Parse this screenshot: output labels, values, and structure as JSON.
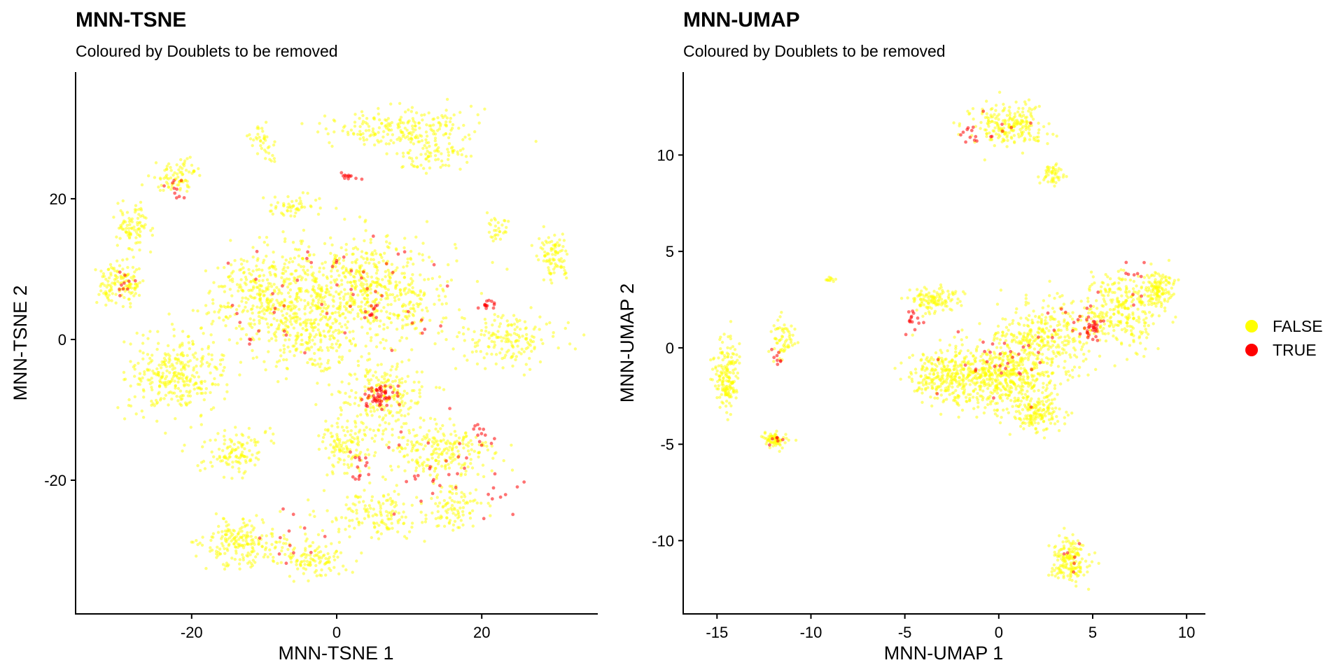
{
  "colors": {
    "FALSE": "#FFFF00",
    "TRUE": "#FF0000"
  },
  "legend": {
    "entries": [
      {
        "label": "FALSE",
        "color": "#FFFF00"
      },
      {
        "label": "TRUE",
        "color": "#FF0000"
      }
    ]
  },
  "chart_data": [
    {
      "type": "scatter",
      "title": "MNN-TSNE",
      "subtitle": "Coloured by Doublets to be removed",
      "xlabel": "MNN-TSNE 1",
      "ylabel": "MNN-TSNE 2",
      "xlim": [
        -36,
        36
      ],
      "ylim": [
        -39,
        38
      ],
      "xticks": [
        -20,
        0,
        20
      ],
      "yticks": [
        -20,
        0,
        20
      ],
      "xtick_labels": [
        "-20",
        "0",
        "20"
      ],
      "ytick_labels": [
        "-20",
        "0",
        "20"
      ],
      "grid": false,
      "legend_position": "right",
      "series": [
        {
          "name": "FALSE",
          "clusters": [
            {
              "x": 4,
              "y": 7,
              "sx": 11,
              "sy": 7,
              "n": 650
            },
            {
              "x": -9,
              "y": 6,
              "sx": 8,
              "sy": 6,
              "n": 400
            },
            {
              "x": -22,
              "y": -5,
              "sx": 6,
              "sy": 5,
              "n": 320
            },
            {
              "x": 24,
              "y": 0,
              "sx": 6,
              "sy": 3,
              "n": 160
            },
            {
              "x": 6,
              "y": -8,
              "sx": 6,
              "sy": 5,
              "n": 220
            },
            {
              "x": 14,
              "y": -16,
              "sx": 7,
              "sy": 4,
              "n": 230
            },
            {
              "x": 5,
              "y": -25,
              "sx": 6,
              "sy": 3,
              "n": 140
            },
            {
              "x": 16,
              "y": -24,
              "sx": 4,
              "sy": 3,
              "n": 100
            },
            {
              "x": -13,
              "y": -29,
              "sx": 5,
              "sy": 3,
              "n": 200
            },
            {
              "x": -3,
              "y": -31,
              "sx": 4,
              "sy": 2.5,
              "n": 110
            },
            {
              "x": -14,
              "y": -16,
              "sx": 4,
              "sy": 3,
              "n": 120
            },
            {
              "x": 1,
              "y": -15,
              "sx": 3,
              "sy": 4,
              "n": 120
            },
            {
              "x": 9,
              "y": 30,
              "sx": 9,
              "sy": 2.5,
              "n": 220
            },
            {
              "x": 13,
              "y": 26,
              "sx": 4,
              "sy": 2,
              "n": 70
            },
            {
              "x": -30,
              "y": 8,
              "sx": 3,
              "sy": 2.5,
              "n": 130
            },
            {
              "x": -28,
              "y": 16,
              "sx": 2,
              "sy": 3,
              "n": 90
            },
            {
              "x": -22,
              "y": 23,
              "sx": 3,
              "sy": 2,
              "n": 80
            },
            {
              "x": 30,
              "y": 12,
              "sx": 2,
              "sy": 3,
              "n": 90
            },
            {
              "x": -10,
              "y": 28,
              "sx": 2,
              "sy": 2,
              "n": 40
            },
            {
              "x": -6,
              "y": 19,
              "sx": 3,
              "sy": 1.5,
              "n": 50
            },
            {
              "x": 22,
              "y": 16,
              "sx": 1.5,
              "sy": 2,
              "n": 30
            },
            {
              "x": -4,
              "y": 0,
              "sx": 6,
              "sy": 4,
              "n": 150
            }
          ]
        },
        {
          "name": "TRUE",
          "clusters": [
            {
              "x": 6,
              "y": -8,
              "sx": 2,
              "sy": 1.5,
              "n": 55
            },
            {
              "x": 21,
              "y": 5,
              "sx": 1,
              "sy": 0.8,
              "n": 14
            },
            {
              "x": 2,
              "y": 23,
              "sx": 1.5,
              "sy": 0.6,
              "n": 12
            },
            {
              "x": -22,
              "y": 21,
              "sx": 1.5,
              "sy": 1.5,
              "n": 10
            },
            {
              "x": 5,
              "y": 4,
              "sx": 1,
              "sy": 1,
              "n": 10
            },
            {
              "x": 3,
              "y": -18,
              "sx": 2,
              "sy": 2,
              "n": 14
            },
            {
              "x": 20,
              "y": -13,
              "sx": 2,
              "sy": 2,
              "n": 12
            },
            {
              "x": -29,
              "y": 8,
              "sx": 2,
              "sy": 2,
              "n": 10
            },
            {
              "x": 4,
              "y": 7,
              "sx": 10,
              "sy": 6,
              "n": 40
            },
            {
              "x": 14,
              "y": -18,
              "sx": 7,
              "sy": 5,
              "n": 25
            },
            {
              "x": -10,
              "y": 4,
              "sx": 7,
              "sy": 6,
              "n": 15
            },
            {
              "x": 22,
              "y": -22,
              "sx": 3,
              "sy": 3,
              "n": 10
            },
            {
              "x": -8,
              "y": -28,
              "sx": 6,
              "sy": 3,
              "n": 12
            }
          ]
        }
      ]
    },
    {
      "type": "scatter",
      "title": "MNN-UMAP",
      "subtitle": "Coloured by Doublets to be removed",
      "xlabel": "MNN-UMAP 1",
      "ylabel": "MNN-UMAP 2",
      "xlim": [
        -16.8,
        11
      ],
      "ylim": [
        -13.8,
        14.3
      ],
      "xticks": [
        -15,
        -10,
        -5,
        0,
        5,
        10
      ],
      "yticks": [
        -10,
        -5,
        0,
        5,
        10
      ],
      "xtick_labels": [
        "-15",
        "-10",
        "-5",
        "0",
        "5",
        "10"
      ],
      "ytick_labels": [
        "-10",
        "-5",
        "0",
        "5",
        "10"
      ],
      "grid": false,
      "legend_position": "right",
      "series": [
        {
          "name": "FALSE",
          "clusters": [
            {
              "x": 0,
              "y": -1.5,
              "sx": 2.8,
              "sy": 1.6,
              "n": 550
            },
            {
              "x": -3,
              "y": -1.5,
              "sx": 1.6,
              "sy": 1.2,
              "n": 220
            },
            {
              "x": 2.5,
              "y": 0.5,
              "sx": 2.3,
              "sy": 1.8,
              "n": 320
            },
            {
              "x": 6.5,
              "y": 2,
              "sx": 1.8,
              "sy": 1.8,
              "n": 280
            },
            {
              "x": 8.5,
              "y": 3,
              "sx": 0.8,
              "sy": 0.9,
              "n": 120
            },
            {
              "x": -3.5,
              "y": 2.5,
              "sx": 1.2,
              "sy": 0.6,
              "n": 120
            },
            {
              "x": 2,
              "y": -3.5,
              "sx": 1.2,
              "sy": 0.8,
              "n": 140
            },
            {
              "x": 0.5,
              "y": 11.5,
              "sx": 1.8,
              "sy": 1,
              "n": 220
            },
            {
              "x": 2.8,
              "y": 9,
              "sx": 0.5,
              "sy": 0.6,
              "n": 50
            },
            {
              "x": 3.8,
              "y": -11,
              "sx": 1,
              "sy": 1,
              "n": 170
            },
            {
              "x": -14.5,
              "y": -1.5,
              "sx": 0.6,
              "sy": 1.6,
              "n": 170
            },
            {
              "x": -12,
              "y": -4.8,
              "sx": 0.6,
              "sy": 0.4,
              "n": 70
            },
            {
              "x": -11.5,
              "y": 0.5,
              "sx": 0.6,
              "sy": 0.8,
              "n": 60
            },
            {
              "x": -9,
              "y": 3.5,
              "sx": 0.3,
              "sy": 0.1,
              "n": 12
            }
          ]
        },
        {
          "name": "TRUE",
          "clusters": [
            {
              "x": 5,
              "y": 1,
              "sx": 0.5,
              "sy": 0.5,
              "n": 28
            },
            {
              "x": -4.5,
              "y": 1.5,
              "sx": 0.6,
              "sy": 0.6,
              "n": 14
            },
            {
              "x": -1.5,
              "y": 11,
              "sx": 0.5,
              "sy": 0.4,
              "n": 10
            },
            {
              "x": -11.8,
              "y": -0.5,
              "sx": 0.3,
              "sy": 0.6,
              "n": 8
            },
            {
              "x": 7.5,
              "y": 3.5,
              "sx": 1,
              "sy": 1,
              "n": 10
            },
            {
              "x": 0,
              "y": -1,
              "sx": 2.5,
              "sy": 1.5,
              "n": 30
            },
            {
              "x": 4,
              "y": 1.5,
              "sx": 1.5,
              "sy": 1.2,
              "n": 16
            },
            {
              "x": -12,
              "y": -4.8,
              "sx": 0.5,
              "sy": 0.3,
              "n": 6
            },
            {
              "x": 3.8,
              "y": -11,
              "sx": 0.8,
              "sy": 0.8,
              "n": 6
            },
            {
              "x": 0.5,
              "y": 11.5,
              "sx": 1.6,
              "sy": 0.9,
              "n": 8
            }
          ]
        }
      ]
    }
  ]
}
